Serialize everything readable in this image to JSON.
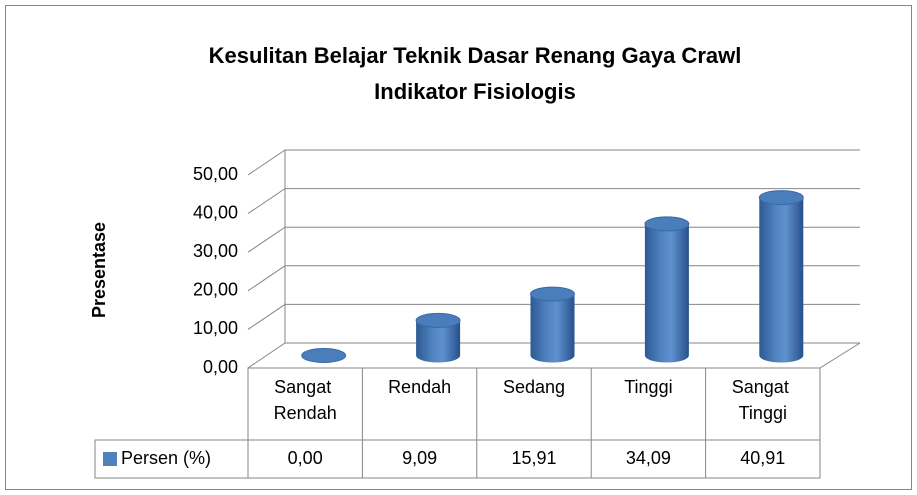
{
  "chart_data": {
    "type": "bar3d",
    "title": "Kesulitan Belajar Teknik Dasar Renang Gaya Crawl",
    "subtitle": "Indikator Fisiologis",
    "y_label": "Presentase",
    "categories": [
      "Sangat Rendah",
      "Rendah",
      "Sedang",
      "Tinggi",
      "Sangat Tinggi"
    ],
    "series": [
      {
        "name": "Persen (%)",
        "color": "#4f81bd",
        "values": [
          0.0,
          9.09,
          15.91,
          34.09,
          40.91
        ],
        "value_labels": [
          "0,00",
          "9,09",
          "15,91",
          "34,09",
          "40,91"
        ]
      }
    ],
    "ylim": [
      0,
      50
    ],
    "yticks": [
      {
        "value": 0,
        "label": "0,00"
      },
      {
        "value": 10,
        "label": "10,00"
      },
      {
        "value": 20,
        "label": "20,00"
      },
      {
        "value": 30,
        "label": "30,00"
      },
      {
        "value": 40,
        "label": "40,00"
      },
      {
        "value": 50,
        "label": "50,00"
      }
    ],
    "grid": true,
    "data_table": true
  }
}
